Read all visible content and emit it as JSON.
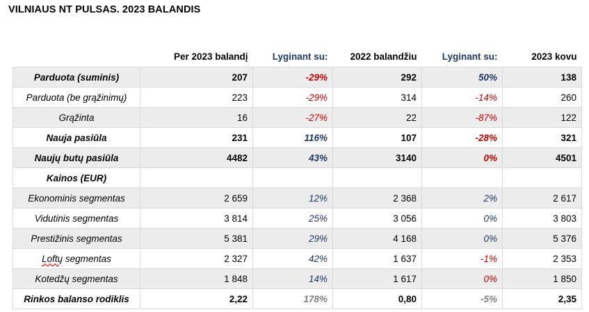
{
  "title": "VILNIAUS NT PULSAS. 2023 BALANDIS",
  "headers": [
    "",
    "Per 2023 balandį",
    "Lyginant su:",
    "2022 balandžiu",
    "Lyginant su:",
    "2023 kovu"
  ],
  "rows": [
    {
      "label": "Parduota (suminis)",
      "bold": true,
      "gray": true,
      "v1": "207",
      "p1": "-29%",
      "c1": "neg",
      "v2": "292",
      "p2": "50%",
      "c2": "pos",
      "v3": "138"
    },
    {
      "label": "Parduota (be grąžinimų)",
      "bold": false,
      "gray": false,
      "v1": "223",
      "p1": "-29%",
      "c1": "neg",
      "v2": "314",
      "p2": "-14%",
      "c2": "neg",
      "v3": "260"
    },
    {
      "label": "Grąžinta",
      "bold": false,
      "gray": true,
      "v1": "16",
      "p1": "-27%",
      "c1": "neg",
      "v2": "22",
      "p2": "-87%",
      "c2": "neg",
      "v3": "122"
    },
    {
      "label": "Nauja pasiūla",
      "bold": true,
      "gray": false,
      "v1": "231",
      "p1": "116%",
      "c1": "pos",
      "v2": "107",
      "p2": "-28%",
      "c2": "neg",
      "v3": "321"
    },
    {
      "label": "Naujų butų pasiūla",
      "bold": true,
      "gray": true,
      "v1": "4482",
      "p1": "43%",
      "c1": "pos",
      "v2": "3140",
      "p2": "0%",
      "c2": "zero",
      "v3": "4501"
    },
    {
      "label": "Kainos (EUR)",
      "bold": true,
      "gray": false,
      "v1": "",
      "p1": "",
      "c1": "",
      "v2": "",
      "p2": "",
      "c2": "",
      "v3": ""
    },
    {
      "label": "Ekonominis segmentas",
      "bold": false,
      "gray": true,
      "v1": "2 659",
      "p1": "12%",
      "c1": "pos",
      "v2": "2 368",
      "p2": "2%",
      "c2": "pos",
      "v3": "2 617"
    },
    {
      "label": "Vidutinis segmentas",
      "bold": false,
      "gray": false,
      "v1": "3 814",
      "p1": "25%",
      "c1": "pos",
      "v2": "3 056",
      "p2": "0%",
      "c2": "pos",
      "v3": "3 803"
    },
    {
      "label": "Prestižinis segmentas",
      "bold": false,
      "gray": true,
      "v1": "5 381",
      "p1": "29%",
      "c1": "pos",
      "v2": "4 168",
      "p2": "0%",
      "c2": "pos",
      "v3": "5 376"
    },
    {
      "label": "Loftų segmentas",
      "bold": false,
      "gray": false,
      "v1": "2 327",
      "p1": "42%",
      "c1": "pos",
      "v2": "1 637",
      "p2": "-1%",
      "c2": "neg",
      "v3": "2 353"
    },
    {
      "label": "Kotedžų segmentas",
      "bold": false,
      "gray": true,
      "v1": "1 848",
      "p1": "14%",
      "c1": "pos",
      "v2": "1 617",
      "p2": "0%",
      "c2": "zero",
      "v3": "1 850"
    },
    {
      "label": "Rinkos balanso rodiklis",
      "bold": true,
      "gray": false,
      "v1": "2,22",
      "p1": "178%",
      "c1": "gray",
      "v2": "0,80",
      "p2": "-5%",
      "c2": "gray",
      "v3": "2,35"
    }
  ],
  "colors": {
    "negative": "#c00000",
    "positive": "#1f3864",
    "neutral": "#808080",
    "stripe": "#ececec"
  }
}
